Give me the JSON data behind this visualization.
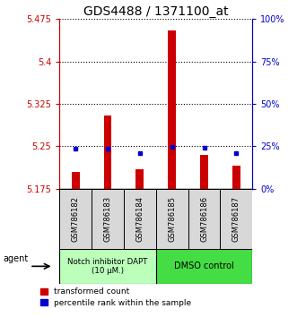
{
  "title": "GDS4488 / 1371100_at",
  "samples": [
    "GSM786182",
    "GSM786183",
    "GSM786184",
    "GSM786185",
    "GSM786186",
    "GSM786187"
  ],
  "red_values": [
    5.205,
    5.305,
    5.21,
    5.455,
    5.235,
    5.215
  ],
  "blue_values": [
    5.245,
    5.245,
    5.237,
    5.249,
    5.248,
    5.238
  ],
  "y_min": 5.175,
  "y_max": 5.475,
  "y_ticks_red": [
    5.175,
    5.25,
    5.325,
    5.4,
    5.475
  ],
  "y_ticks_blue": [
    0,
    25,
    50,
    75,
    100
  ],
  "red_color": "#cc0000",
  "blue_color": "#0000cc",
  "group0_label": "Notch inhibitor DAPT\n(10 μM.)",
  "group0_color": "#bbffbb",
  "group1_label": "DMSO control",
  "group1_color": "#44dd44",
  "legend_red": "transformed count",
  "legend_blue": "percentile rank within the sample",
  "agent_label": "agent",
  "title_fontsize": 10
}
